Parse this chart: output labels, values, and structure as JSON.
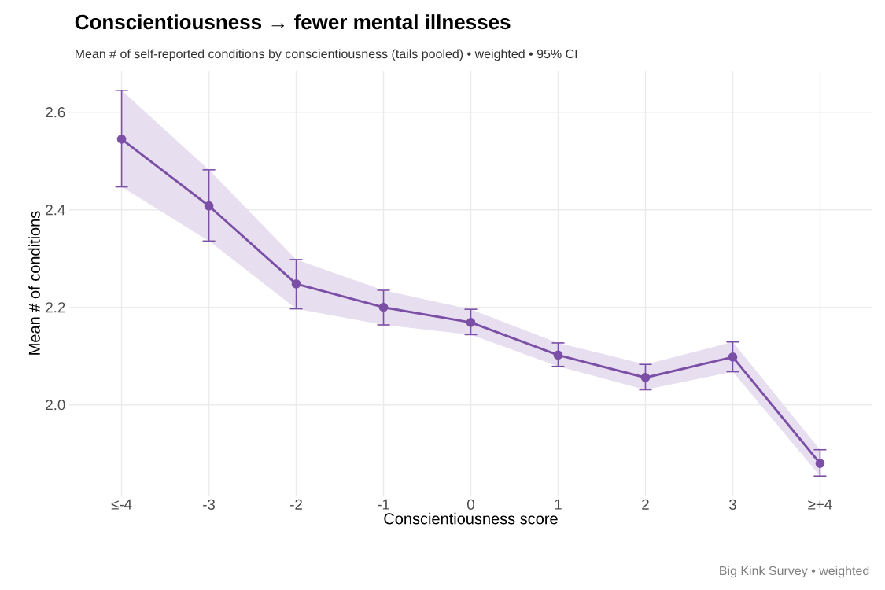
{
  "chart_data": {
    "type": "line",
    "title": "Conscientiousness → fewer mental illnesses",
    "subtitle": "Mean # of self-reported conditions by conscientiousness (tails pooled)  •  weighted  •  95% CI",
    "xlabel": "Conscientiousness score",
    "ylabel": "Mean # of conditions",
    "annotations": [
      "Big Kink Survey  •  weighted"
    ],
    "categories": [
      "≤-4",
      "-3",
      "-2",
      "-1",
      "0",
      "1",
      "2",
      "3",
      "≥+4"
    ],
    "series": [
      {
        "color": "#7b4fa6",
        "values": [
          2.545,
          2.408,
          2.248,
          2.2,
          2.169,
          2.102,
          2.056,
          2.098,
          1.88
        ],
        "errors": [
          [
            2.447,
            2.645
          ],
          [
            2.336,
            2.482
          ],
          [
            2.197,
            2.298
          ],
          [
            2.164,
            2.235
          ],
          [
            2.144,
            2.196
          ],
          [
            2.079,
            2.127
          ],
          [
            2.031,
            2.083
          ],
          [
            2.068,
            2.129
          ],
          [
            1.854,
            1.908
          ]
        ],
        "lower": [
          2.447,
          2.336,
          2.197,
          2.164,
          2.144,
          2.079,
          2.031,
          2.068,
          1.854
        ],
        "upper": [
          2.645,
          2.482,
          2.298,
          2.235,
          2.196,
          2.127,
          2.083,
          2.129,
          1.908
        ]
      }
    ],
    "ylim": [
      1.814,
      2.685
    ],
    "yticks": [
      {
        "value": 2.0,
        "label": "2.0"
      },
      {
        "value": 2.2,
        "label": "2.2"
      },
      {
        "value": 2.4,
        "label": "2.4"
      },
      {
        "value": 2.6,
        "label": "2.6"
      }
    ],
    "grid": true,
    "legend": false,
    "marker": "circle",
    "line_style": "solid"
  }
}
